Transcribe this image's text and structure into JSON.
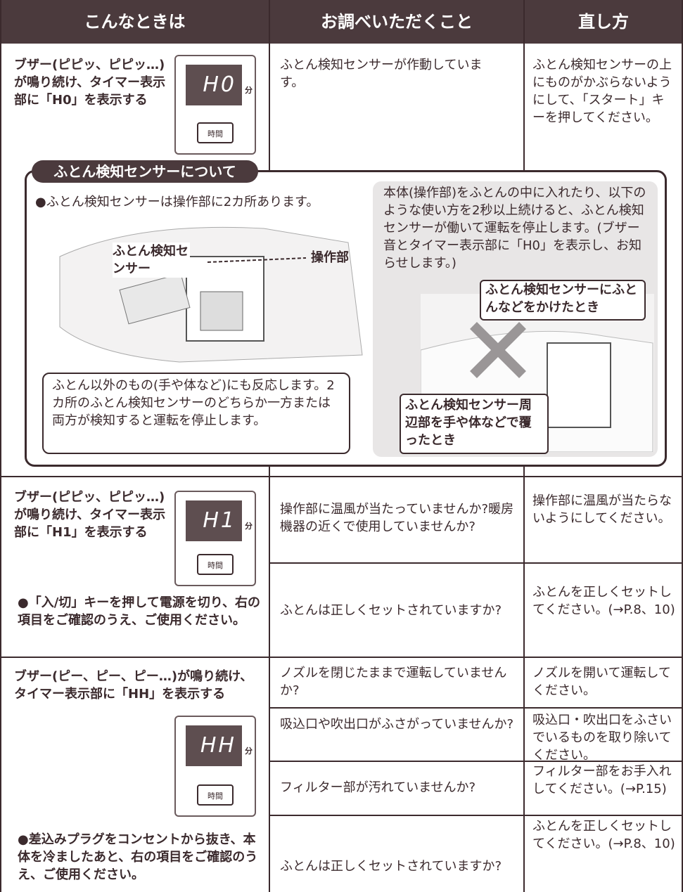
{
  "header": {
    "columns": [
      "こんなときは",
      "お調べいただくこと",
      "直し方"
    ]
  },
  "rows": [
    {
      "symptom": "ブザー(ピピッ、ピピッ…)が鳴り続け、タイマー表示部に「H0」を表示する",
      "display": {
        "code": "H0",
        "unit": "分",
        "button": "時間"
      },
      "checks": [
        {
          "check": "ふとん検知センサーが作動しています。",
          "fix": "ふとん検知センサーの上にものがかぶらないようにして、「スタート」キーを押してください。"
        }
      ]
    },
    {
      "symptom": "ブザー(ピピッ、ピピッ…)が鳴り続け、タイマー表示部に「H1」を表示する",
      "display": {
        "code": "H1",
        "unit": "分",
        "button": "時間"
      },
      "note": "●「入/切」キーを押して電源を切り、右の項目をご確認のうえ、ご使用ください。",
      "checks": [
        {
          "check": "操作部に温風が当たっていませんか?暖房機器の近くで使用していませんか?",
          "fix": "操作部に温風が当たらないようにしてください。"
        },
        {
          "check": "ふとんは正しくセットされていますか?",
          "fix": "ふとんを正しくセットしてください。(→P.8、10)"
        }
      ]
    },
    {
      "symptom": "ブザー(ピー、ピー、ピー…)が鳴り続け、タイマー表示部に「HH」を表示する",
      "display": {
        "code": "HH",
        "unit": "分",
        "button": "時間"
      },
      "note": "●差込みプラグをコンセントから抜き、本体を冷ましたあと、右の項目をご確認のうえ、ご使用ください。",
      "checks": [
        {
          "check": "ノズルを閉じたままで運転していませんか?",
          "fix": "ノズルを開いて運転してください。"
        },
        {
          "check": "吸込口や吹出口がふさがっていませんか?",
          "fix": "吸込口・吹出口をふさいでいるものを取り除いてください。"
        },
        {
          "check": "フィルター部が汚れていませんか?",
          "fix": "フィルター部をお手入れしてください。(→P.15)"
        },
        {
          "check": "ふとんは正しくセットされていますか?",
          "fix": "ふとんを正しくセットしてください。(→P.8、10)"
        }
      ]
    }
  ],
  "info_box": {
    "title": "ふとん検知センサーについて",
    "bullet": "●ふとん検知センサーは操作部に2カ所あります。",
    "sensor_label": "ふとん検知センサー",
    "panel_label": "操作部",
    "note": "ふとん以外のもの(手や体など)にも反応します。2カ所のふとん検知センサーのどちらか一方または両方が検知すると運転を停止します。",
    "description": "本体(操作部)をふとんの中に入れたり、以下のような使い方を2秒以上続けると、ふとん検知センサーが働いて運転を停止します。(ブザー音とタイマー表示部に「H0」を表示し、お知らせします。)",
    "callouts": [
      "ふとん検知センサーにふとんなどをかけたとき",
      "ふとん検知センサー周辺部を手や体などで覆ったとき"
    ]
  }
}
